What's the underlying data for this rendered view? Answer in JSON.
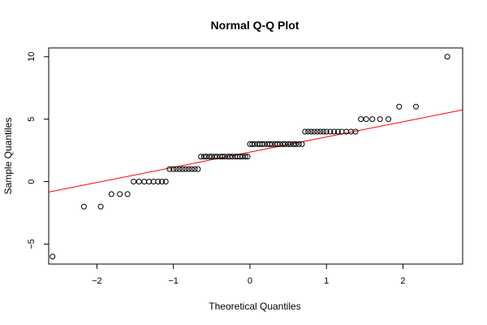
{
  "chart_data": {
    "type": "scatter",
    "title": "Normal Q-Q Plot",
    "xlabel": "Theoretical Quantiles",
    "ylabel": "Sample Quantiles",
    "xlim": [
      -2.63,
      2.78
    ],
    "ylim": [
      -6.6,
      10.7
    ],
    "xticks": [
      -2,
      -1,
      0,
      1,
      2
    ],
    "yticks": [
      -5,
      0,
      5,
      10
    ],
    "grid": false,
    "marker": "open-circle",
    "reference_line": {
      "color": "#ff0000",
      "intercept": 2.36,
      "slope": 1.215
    },
    "series": [
      {
        "points": [
          [
            -2.58,
            -6
          ],
          [
            -2.17,
            -2
          ],
          [
            -1.95,
            -2
          ],
          [
            -1.81,
            -1
          ],
          [
            -1.7,
            -1
          ],
          [
            -1.6,
            -1
          ],
          [
            -1.52,
            0
          ],
          [
            -1.45,
            0
          ],
          [
            -1.38,
            0
          ],
          [
            -1.32,
            0
          ],
          [
            -1.26,
            0
          ],
          [
            -1.2,
            0
          ],
          [
            -1.15,
            0
          ],
          [
            -1.1,
            0
          ],
          [
            -1.05,
            1
          ],
          [
            -1.0,
            1
          ],
          [
            -0.96,
            1
          ],
          [
            -0.92,
            1
          ],
          [
            -0.88,
            1
          ],
          [
            -0.84,
            1
          ],
          [
            -0.8,
            1
          ],
          [
            -0.76,
            1
          ],
          [
            -0.72,
            1
          ],
          [
            -0.68,
            1
          ],
          [
            -0.64,
            2
          ],
          [
            -0.6,
            2
          ],
          [
            -0.57,
            2
          ],
          [
            -0.53,
            2
          ],
          [
            -0.5,
            2
          ],
          [
            -0.46,
            2
          ],
          [
            -0.43,
            2
          ],
          [
            -0.39,
            2
          ],
          [
            -0.36,
            2
          ],
          [
            -0.33,
            2
          ],
          [
            -0.29,
            2
          ],
          [
            -0.26,
            2
          ],
          [
            -0.23,
            2
          ],
          [
            -0.19,
            2
          ],
          [
            -0.16,
            2
          ],
          [
            -0.13,
            2
          ],
          [
            -0.1,
            2
          ],
          [
            -0.06,
            2
          ],
          [
            -0.03,
            2
          ],
          [
            0.0,
            3
          ],
          [
            0.03,
            3
          ],
          [
            0.06,
            3
          ],
          [
            0.1,
            3
          ],
          [
            0.13,
            3
          ],
          [
            0.16,
            3
          ],
          [
            0.19,
            3
          ],
          [
            0.23,
            3
          ],
          [
            0.26,
            3
          ],
          [
            0.29,
            3
          ],
          [
            0.33,
            3
          ],
          [
            0.36,
            3
          ],
          [
            0.39,
            3
          ],
          [
            0.43,
            3
          ],
          [
            0.46,
            3
          ],
          [
            0.5,
            3
          ],
          [
            0.53,
            3
          ],
          [
            0.57,
            3
          ],
          [
            0.6,
            3
          ],
          [
            0.64,
            3
          ],
          [
            0.68,
            3
          ],
          [
            0.72,
            4
          ],
          [
            0.76,
            4
          ],
          [
            0.8,
            4
          ],
          [
            0.84,
            4
          ],
          [
            0.88,
            4
          ],
          [
            0.92,
            4
          ],
          [
            0.96,
            4
          ],
          [
            1.0,
            4
          ],
          [
            1.05,
            4
          ],
          [
            1.1,
            4
          ],
          [
            1.15,
            4
          ],
          [
            1.2,
            4
          ],
          [
            1.26,
            4
          ],
          [
            1.32,
            4
          ],
          [
            1.38,
            4
          ],
          [
            1.45,
            5
          ],
          [
            1.52,
            5
          ],
          [
            1.6,
            5
          ],
          [
            1.7,
            5
          ],
          [
            1.81,
            5
          ],
          [
            1.95,
            6
          ],
          [
            2.17,
            6
          ],
          [
            2.58,
            10
          ]
        ]
      }
    ]
  }
}
